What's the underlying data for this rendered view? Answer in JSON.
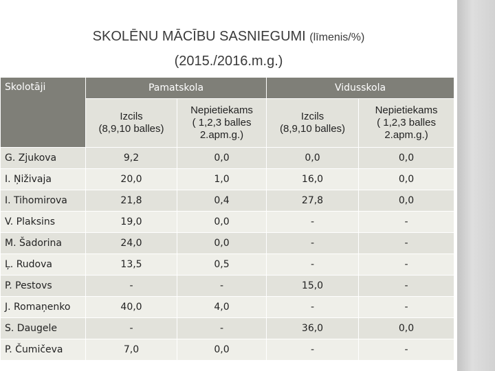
{
  "title": {
    "line1_main": "SKOLĒNU MĀCĪBU SASNIEGUMI",
    "line1_small": "(līmenis/%)",
    "line2": "(2015./2016.m.g.)"
  },
  "table": {
    "teachers_header": "Skolotāji",
    "group_headers": [
      "Pamatskola",
      "Vidusskola"
    ],
    "sub_headers": [
      {
        "line1": "Izcils",
        "line2": "(8,9,10 balles)",
        "line3": ""
      },
      {
        "line1": "Nepietiekams",
        "line2": "( 1,2,3 balles",
        "line3": "2.apm.g.)"
      },
      {
        "line1": "Izcils",
        "line2": "(8,9,10 balles)",
        "line3": ""
      },
      {
        "line1": "Nepietiekams",
        "line2": "( 1,2,3 balles",
        "line3": "2.apm.g.)"
      }
    ],
    "rows": [
      {
        "name": "G. Zjukova",
        "values": [
          "9,2",
          "0,0",
          "0,0",
          "0,0"
        ]
      },
      {
        "name": "I. Ņiživaja",
        "values": [
          "20,0",
          "1,0",
          "16,0",
          "0,0"
        ]
      },
      {
        "name": "I. Tihomirova",
        "values": [
          "21,8",
          "0,4",
          "27,8",
          "0,0"
        ]
      },
      {
        "name": "V. Plaksins",
        "values": [
          "19,0",
          "0,0",
          "-",
          "-"
        ]
      },
      {
        "name": "M. Šadorina",
        "values": [
          "24,0",
          "0,0",
          "-",
          "-"
        ]
      },
      {
        "name": "Ļ. Rudova",
        "values": [
          "13,5",
          "0,5",
          "-",
          "-"
        ]
      },
      {
        "name": "P. Pestovs",
        "values": [
          "-",
          "-",
          "15,0",
          "-"
        ]
      },
      {
        "name": "J. Romaņenko",
        "values": [
          "40,0",
          "4,0",
          "-",
          "-"
        ]
      },
      {
        "name": "S. Daugele",
        "values": [
          "-",
          "-",
          "36,0",
          "0,0"
        ]
      },
      {
        "name": "P. Čumičeva",
        "values": [
          "7,0",
          "0,0",
          "-",
          "-"
        ]
      }
    ]
  },
  "colors": {
    "header_dark": "#7f7f78",
    "row_odd": "#e2e2db",
    "row_even": "#efefe9",
    "side_band": "#d8d8d8"
  }
}
